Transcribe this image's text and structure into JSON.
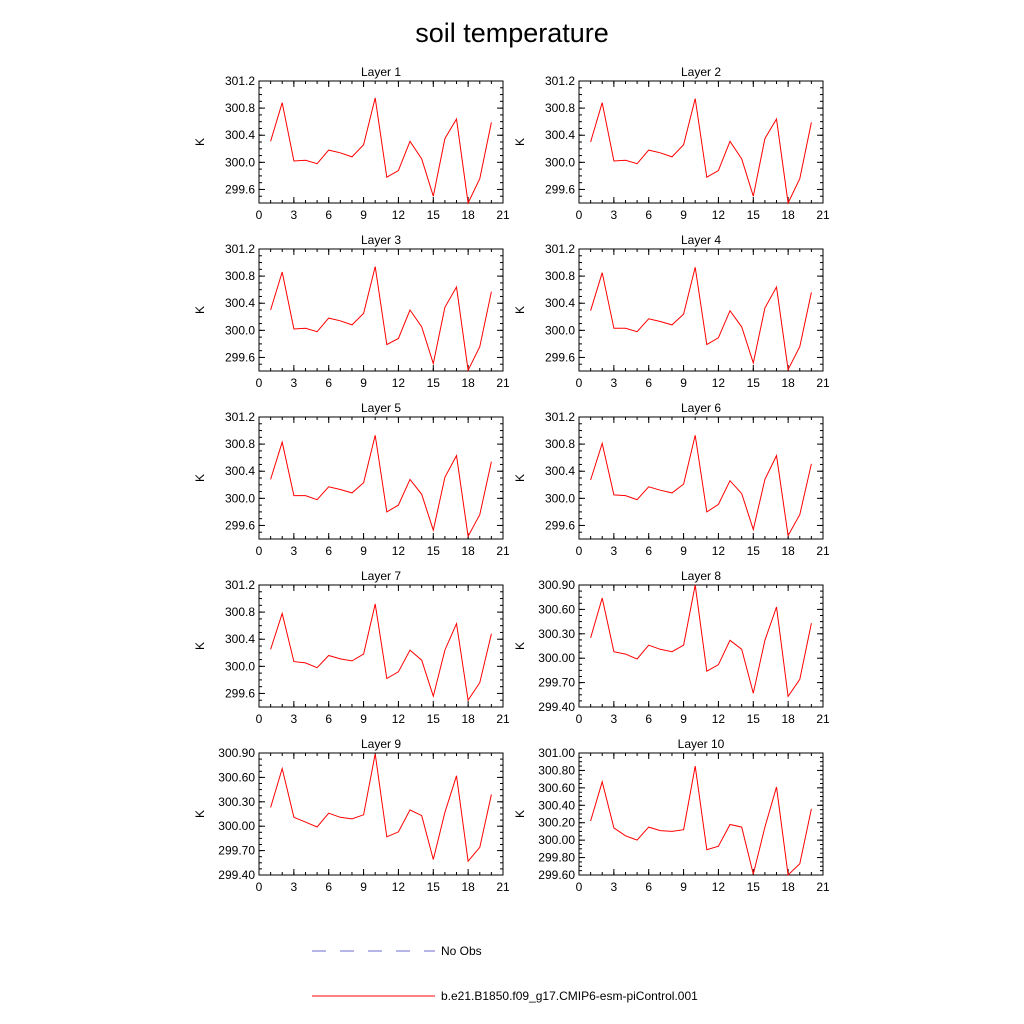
{
  "title": "soil temperature",
  "legend": {
    "placement": "bottom",
    "entries": [
      {
        "label": "No Obs",
        "color": "#6b6bd6",
        "style": "dashed"
      },
      {
        "label": "b.e21.B1850.f09_g17.CMIP6-esm-piControl.001",
        "color": "#ff0000",
        "style": "solid"
      }
    ]
  },
  "chart_data": [
    {
      "type": "line",
      "title": "Layer 1",
      "ylabel": "K",
      "xlim": [
        0,
        21
      ],
      "ylim": [
        299.4,
        301.2
      ],
      "xticks": [
        "0",
        "3",
        "6",
        "9",
        "12",
        "15",
        "18",
        "21"
      ],
      "yticks": [
        "299.6",
        "300.0",
        "300.4",
        "300.8",
        "301.2"
      ],
      "x": [
        1,
        2,
        3,
        4,
        5,
        6,
        7,
        8,
        9,
        10,
        11,
        12,
        13,
        14,
        15,
        16,
        17,
        18,
        19,
        20
      ],
      "series": [
        {
          "values": [
            300.31,
            300.88,
            300.02,
            300.03,
            299.98,
            300.18,
            300.14,
            300.08,
            300.26,
            300.95,
            299.78,
            299.88,
            300.31,
            300.05,
            299.5,
            300.35,
            300.64,
            299.4,
            299.76,
            300.59
          ],
          "color": "#ff0000"
        }
      ]
    },
    {
      "type": "line",
      "title": "Layer 2",
      "ylabel": "K",
      "xlim": [
        0,
        21
      ],
      "ylim": [
        299.4,
        301.2
      ],
      "xticks": [
        "0",
        "3",
        "6",
        "9",
        "12",
        "15",
        "18",
        "21"
      ],
      "yticks": [
        "299.6",
        "300.0",
        "300.4",
        "300.8",
        "301.2"
      ],
      "x": [
        1,
        2,
        3,
        4,
        5,
        6,
        7,
        8,
        9,
        10,
        11,
        12,
        13,
        14,
        15,
        16,
        17,
        18,
        19,
        20
      ],
      "series": [
        {
          "values": [
            300.3,
            300.88,
            300.02,
            300.03,
            299.98,
            300.18,
            300.14,
            300.08,
            300.26,
            300.94,
            299.78,
            299.88,
            300.31,
            300.05,
            299.5,
            300.35,
            300.64,
            299.4,
            299.76,
            300.59
          ],
          "color": "#ff0000"
        }
      ]
    },
    {
      "type": "line",
      "title": "Layer 3",
      "ylabel": "K",
      "xlim": [
        0,
        21
      ],
      "ylim": [
        299.4,
        301.2
      ],
      "xticks": [
        "0",
        "3",
        "6",
        "9",
        "12",
        "15",
        "18",
        "21"
      ],
      "yticks": [
        "299.6",
        "300.0",
        "300.4",
        "300.8",
        "301.2"
      ],
      "x": [
        1,
        2,
        3,
        4,
        5,
        6,
        7,
        8,
        9,
        10,
        11,
        12,
        13,
        14,
        15,
        16,
        17,
        18,
        19,
        20
      ],
      "series": [
        {
          "values": [
            300.3,
            300.86,
            300.02,
            300.03,
            299.98,
            300.18,
            300.14,
            300.08,
            300.25,
            300.94,
            299.79,
            299.88,
            300.3,
            300.05,
            299.51,
            300.34,
            300.64,
            299.41,
            299.76,
            300.57
          ],
          "color": "#ff0000"
        }
      ]
    },
    {
      "type": "line",
      "title": "Layer 4",
      "ylabel": "K",
      "xlim": [
        0,
        21
      ],
      "ylim": [
        299.4,
        301.2
      ],
      "xticks": [
        "0",
        "3",
        "6",
        "9",
        "12",
        "15",
        "18",
        "21"
      ],
      "yticks": [
        "299.6",
        "300.0",
        "300.4",
        "300.8",
        "301.2"
      ],
      "x": [
        1,
        2,
        3,
        4,
        5,
        6,
        7,
        8,
        9,
        10,
        11,
        12,
        13,
        14,
        15,
        16,
        17,
        18,
        19,
        20
      ],
      "series": [
        {
          "values": [
            300.29,
            300.85,
            300.03,
            300.03,
            299.98,
            300.17,
            300.13,
            300.08,
            300.24,
            300.93,
            299.79,
            299.89,
            300.29,
            300.05,
            299.52,
            300.33,
            300.64,
            299.42,
            299.76,
            300.56
          ],
          "color": "#ff0000"
        }
      ]
    },
    {
      "type": "line",
      "title": "Layer 5",
      "ylabel": "K",
      "xlim": [
        0,
        21
      ],
      "ylim": [
        299.4,
        301.2
      ],
      "xticks": [
        "0",
        "3",
        "6",
        "9",
        "12",
        "15",
        "18",
        "21"
      ],
      "yticks": [
        "299.6",
        "300.0",
        "300.4",
        "300.8",
        "301.2"
      ],
      "x": [
        1,
        2,
        3,
        4,
        5,
        6,
        7,
        8,
        9,
        10,
        11,
        12,
        13,
        14,
        15,
        16,
        17,
        18,
        19,
        20
      ],
      "series": [
        {
          "values": [
            300.28,
            300.83,
            300.04,
            300.04,
            299.98,
            300.17,
            300.13,
            300.08,
            300.23,
            300.93,
            299.8,
            299.9,
            300.28,
            300.06,
            299.53,
            300.31,
            300.63,
            299.44,
            299.76,
            300.54
          ],
          "color": "#ff0000"
        }
      ]
    },
    {
      "type": "line",
      "title": "Layer 6",
      "ylabel": "K",
      "xlim": [
        0,
        21
      ],
      "ylim": [
        299.4,
        301.2
      ],
      "xticks": [
        "0",
        "3",
        "6",
        "9",
        "12",
        "15",
        "18",
        "21"
      ],
      "yticks": [
        "299.6",
        "300.0",
        "300.4",
        "300.8",
        "301.2"
      ],
      "x": [
        1,
        2,
        3,
        4,
        5,
        6,
        7,
        8,
        9,
        10,
        11,
        12,
        13,
        14,
        15,
        16,
        17,
        18,
        19,
        20
      ],
      "series": [
        {
          "values": [
            300.27,
            300.81,
            300.05,
            300.04,
            299.98,
            300.17,
            300.12,
            300.08,
            300.21,
            300.93,
            299.8,
            299.91,
            300.26,
            300.07,
            299.54,
            300.28,
            300.63,
            299.45,
            299.76,
            300.51
          ],
          "color": "#ff0000"
        }
      ]
    },
    {
      "type": "line",
      "title": "Layer 7",
      "ylabel": "K",
      "xlim": [
        0,
        21
      ],
      "ylim": [
        299.4,
        301.2
      ],
      "xticks": [
        "0",
        "3",
        "6",
        "9",
        "12",
        "15",
        "18",
        "21"
      ],
      "yticks": [
        "299.6",
        "300.0",
        "300.4",
        "300.8",
        "301.2"
      ],
      "x": [
        1,
        2,
        3,
        4,
        5,
        6,
        7,
        8,
        9,
        10,
        11,
        12,
        13,
        14,
        15,
        16,
        17,
        18,
        19,
        20
      ],
      "series": [
        {
          "values": [
            300.25,
            300.78,
            300.07,
            300.05,
            299.98,
            300.16,
            300.11,
            300.08,
            300.18,
            300.92,
            299.82,
            299.92,
            300.24,
            300.09,
            299.56,
            300.24,
            300.63,
            299.5,
            299.76,
            300.48
          ],
          "color": "#ff0000"
        }
      ]
    },
    {
      "type": "line",
      "title": "Layer 8",
      "ylabel": "K",
      "xlim": [
        0,
        21
      ],
      "ylim": [
        299.4,
        300.9
      ],
      "xticks": [
        "0",
        "3",
        "6",
        "9",
        "12",
        "15",
        "18",
        "21"
      ],
      "yticks": [
        "299.40",
        "299.70",
        "300.00",
        "300.30",
        "300.60",
        "300.90"
      ],
      "x": [
        1,
        2,
        3,
        4,
        5,
        6,
        7,
        8,
        9,
        10,
        11,
        12,
        13,
        14,
        15,
        16,
        17,
        18,
        19,
        20
      ],
      "series": [
        {
          "values": [
            300.25,
            300.74,
            300.08,
            300.05,
            299.99,
            300.16,
            300.11,
            300.08,
            300.16,
            300.9,
            299.84,
            299.92,
            300.22,
            300.11,
            299.57,
            300.22,
            300.63,
            299.53,
            299.74,
            300.43
          ],
          "color": "#ff0000"
        }
      ]
    },
    {
      "type": "line",
      "title": "Layer 9",
      "ylabel": "K",
      "xlim": [
        0,
        21
      ],
      "ylim": [
        299.4,
        300.9
      ],
      "xticks": [
        "0",
        "3",
        "6",
        "9",
        "12",
        "15",
        "18",
        "21"
      ],
      "yticks": [
        "299.40",
        "299.70",
        "300.00",
        "300.30",
        "300.60",
        "300.90"
      ],
      "x": [
        1,
        2,
        3,
        4,
        5,
        6,
        7,
        8,
        9,
        10,
        11,
        12,
        13,
        14,
        15,
        16,
        17,
        18,
        19,
        20
      ],
      "series": [
        {
          "values": [
            300.23,
            300.71,
            300.11,
            300.05,
            299.99,
            300.16,
            300.11,
            300.09,
            300.14,
            300.89,
            299.87,
            299.93,
            300.2,
            300.13,
            299.59,
            300.17,
            300.62,
            299.57,
            299.74,
            300.39
          ],
          "color": "#ff0000"
        }
      ]
    },
    {
      "type": "line",
      "title": "Layer 10",
      "ylabel": "K",
      "xlim": [
        0,
        21
      ],
      "ylim": [
        299.6,
        301.0
      ],
      "xticks": [
        "0",
        "3",
        "6",
        "9",
        "12",
        "15",
        "18",
        "21"
      ],
      "yticks": [
        "299.60",
        "299.80",
        "300.00",
        "300.20",
        "300.40",
        "300.60",
        "300.80",
        "301.00"
      ],
      "x": [
        1,
        2,
        3,
        4,
        5,
        6,
        7,
        8,
        9,
        10,
        11,
        12,
        13,
        14,
        15,
        16,
        17,
        18,
        19,
        20
      ],
      "series": [
        {
          "values": [
            300.22,
            300.67,
            300.14,
            300.05,
            300.0,
            300.15,
            300.11,
            300.1,
            300.12,
            300.85,
            299.89,
            299.93,
            300.18,
            300.15,
            299.61,
            300.15,
            300.61,
            299.6,
            299.73,
            300.36
          ],
          "color": "#ff0000"
        }
      ]
    }
  ]
}
